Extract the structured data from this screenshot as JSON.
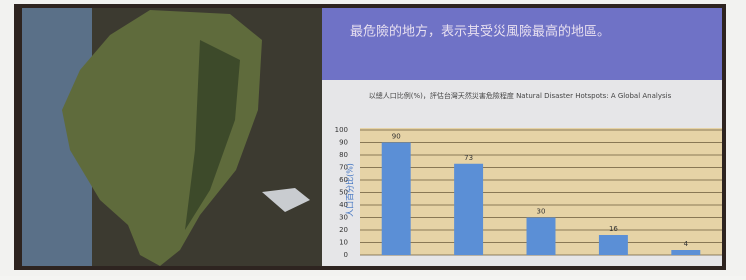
{
  "heading": "最危險的地方，表示其受災風險最高的地區。",
  "chart_data": {
    "type": "bar",
    "title": "以總人口比例(%)，評估台灣天然災害危險程度 Natural Disaster Hotspots: A Global Analysis",
    "y_label": "人口百分比(%)",
    "categories": [
      null,
      null,
      null,
      null,
      null
    ],
    "values": [
      90,
      73,
      30,
      16,
      4
    ],
    "color": "#5b8fd6",
    "ylim": [
      0,
      100
    ],
    "yticks": [
      0,
      10,
      20,
      30,
      40,
      50,
      60,
      70,
      80,
      90,
      100
    ],
    "grid": true
  }
}
